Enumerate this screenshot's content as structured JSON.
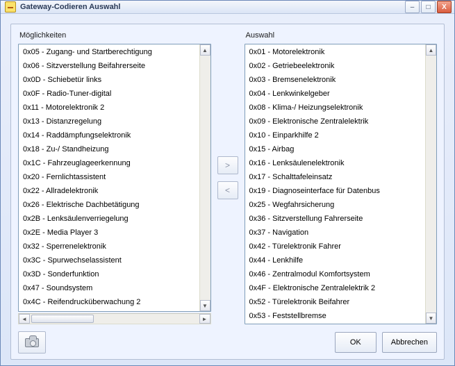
{
  "window": {
    "title": "Gateway-Codieren Auswahl"
  },
  "labels": {
    "left": "Möglichkeiten",
    "right": "Auswahl"
  },
  "lists": {
    "possibilities": [
      "0x05 - Zugang- und Startberechtigung",
      "0x06 - Sitzverstellung Beifahrerseite",
      "0x0D - Schiebetür links",
      "0x0F - Radio-Tuner-digital",
      "0x11 - Motorelektronik 2",
      "0x13 - Distanzregelung",
      "0x14 - Raddämpfungselektronik",
      "0x18 - Zu-/ Standheizung",
      "0x1C - Fahrzeuglageerkennung",
      "0x20 - Fernlichtassistent",
      "0x22 - Allradelektronik",
      "0x26 - Elektrische Dachbetätigung",
      "0x2B - Lenksäulenverriegelung",
      "0x2E - Media Player 3",
      "0x32 - Sperrenelektronik",
      "0x3C - Spurwechselassistent",
      "0x3D - Sonderfunktion",
      "0x47 - Soundsystem",
      "0x4C - Reifendrucküberwachung 2"
    ],
    "selection": [
      "0x01 - Motorelektronik",
      "0x02 - Getriebeelektronik",
      "0x03 - Bremsenelektronik",
      "0x04 - Lenkwinkelgeber",
      "0x08 - Klima-/ Heizungselektronik",
      "0x09 - Elektronische Zentralelektrik",
      "0x10 - Einparkhilfe 2",
      "0x15 - Airbag",
      "0x16 - Lenksäulenelektronik",
      "0x17 - Schalttafeleinsatz",
      "0x19 - Diagnoseinterface für Datenbus",
      "0x25 - Wegfahrsicherung",
      "0x36 - Sitzverstellung Fahrerseite",
      "0x37 - Navigation",
      "0x42 - Türelektronik Fahrer",
      "0x44 - Lenkhilfe",
      "0x46 - Zentralmodul Komfortsystem",
      "0x4F - Elektronische Zentralelektrik 2",
      "0x52 - Türelektronik Beifahrer",
      "0x53 - Feststellbremse"
    ]
  },
  "buttons": {
    "move_right": ">",
    "move_left": "<",
    "ok": "OK",
    "cancel": "Abbrechen"
  },
  "titlebar_buttons": {
    "min": "–",
    "max": "□",
    "close": "X"
  },
  "scroll_glyphs": {
    "up": "▲",
    "down": "▼",
    "left": "◄",
    "right": "►"
  }
}
